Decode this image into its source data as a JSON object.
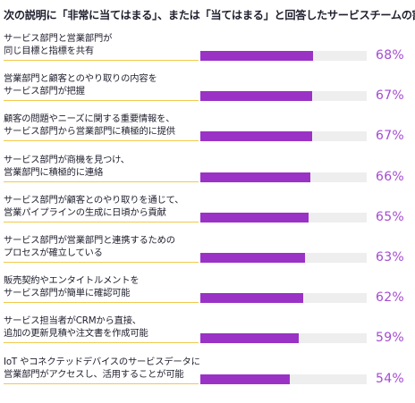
{
  "chart_data": {
    "type": "bar",
    "orientation": "horizontal",
    "title": "次の説明に「非常に当てはまる」、または「当てはまる」と回答したサービスチームの割合",
    "xlabel": "",
    "ylabel": "",
    "xlim": [
      0,
      100
    ],
    "grid": false,
    "colors": {
      "bar": "#9a32c6",
      "track": "#eeeeee",
      "value_text": "#a44bd0",
      "label_underline": "#f2c84b"
    },
    "categories": [
      [
        "サービス部門と営業部門が",
        "同じ目標と指標を共有"
      ],
      [
        "営業部門と顧客とのやり取りの内容を",
        "サービス部門が把握"
      ],
      [
        "顧客の問題やニーズに関する重要情報を、",
        "サービス部門から営業部門に積極的に提供"
      ],
      [
        "サービス部門が商機を見つけ、",
        "営業部門に積極的に連絡"
      ],
      [
        "サービス部門が顧客とのやり取りを通じて、",
        "営業パイプラインの生成に日頃から貢献"
      ],
      [
        "サービス部門が営業部門と連携するための",
        "プロセスが確立している"
      ],
      [
        "販売契約やエンタイトルメントを",
        "サービス部門が簡単に確認可能"
      ],
      [
        "サービス担当者がCRMから直接、",
        "追加の更新見積や注文書を作成可能"
      ],
      [
        "IoT やコネクテッドデバイスのサービスデータに",
        "営業部門がアクセスし、活用することが可能"
      ]
    ],
    "values": [
      68,
      67,
      67,
      66,
      65,
      63,
      62,
      59,
      54
    ],
    "value_labels": [
      "68%",
      "67%",
      "67%",
      "66%",
      "65%",
      "63%",
      "62%",
      "59%",
      "54%"
    ]
  }
}
